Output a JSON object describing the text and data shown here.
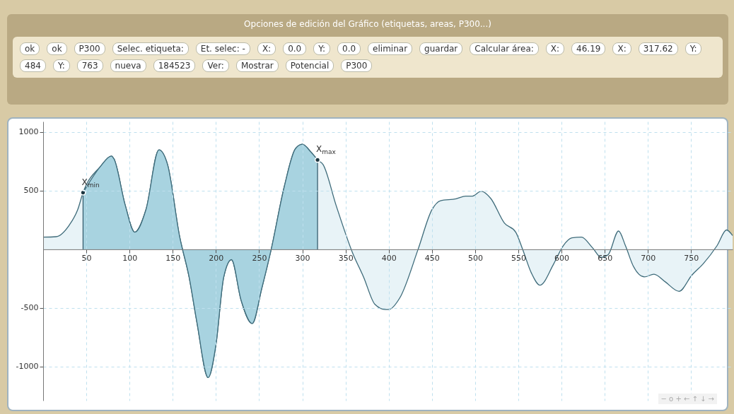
{
  "chart_data": [
    {
      "type": "other",
      "title": "Opciones de edición del Gráfico (etiquetas, areas, P300...)",
      "annotations": [
        "ok",
        "ok",
        "P300",
        "Selec. etiqueta:",
        "Et. selec: -",
        "X:",
        "0.0",
        "Y:",
        "0.0",
        "eliminar",
        "guardar",
        "Calcular área:",
        "X:",
        "46.19",
        "X:",
        "317.62",
        "Y:",
        "484",
        "Y:",
        "763",
        "nueva",
        "184523",
        "Ver:",
        "Mostrar",
        "Potencial",
        "P300"
      ]
    },
    {
      "type": "area",
      "xlim": [
        0,
        798
      ],
      "ylim": [
        -1290,
        1090
      ],
      "xticks": [
        50,
        100,
        150,
        200,
        250,
        300,
        350,
        400,
        450,
        500,
        550,
        600,
        650,
        700,
        750
      ],
      "yticks": [
        {
          "value": -1000,
          "label": "-1000"
        },
        {
          "value": -500,
          "label": "-500"
        },
        500,
        {
          "value": 1000,
          "label": "1000"
        }
      ],
      "grid": true,
      "series": [
        {
          "color": "#e8f3f7",
          "x": [
            0,
            15,
            30,
            40,
            46.19,
            66,
            79,
            82,
            95,
            106,
            119,
            134,
            144,
            158,
            169,
            178,
            191,
            200,
            209,
            218,
            229,
            242,
            253,
            264,
            279,
            292,
            300,
            310,
            317.62,
            324,
            339,
            358,
            371,
            384,
            396,
            400,
            413,
            434,
            450,
            460,
            478,
            489,
            497,
            507,
            518,
            534,
            547,
            555,
            565,
            575,
            591,
            602,
            612,
            623,
            636,
            646,
            654,
            666,
            674,
            683,
            696,
            707,
            720,
            736,
            751,
            764,
            780,
            791,
            798
          ],
          "values": [
            104,
            108,
            204,
            338,
            484,
            704,
            796,
            771,
            377,
            146,
            338,
            848,
            723,
            108,
            -238,
            -623,
            -1094,
            -815,
            -238,
            -88,
            -431,
            -633,
            -335,
            0,
            531,
            858,
            896,
            829,
            763,
            723,
            377,
            -27,
            -238,
            -469,
            -513,
            -513,
            -412,
            0,
            338,
            415,
            431,
            454,
            454,
            496,
            435,
            223,
            146,
            0,
            -200,
            -306,
            -123,
            31,
            98,
            104,
            12,
            -69,
            -46,
            156,
            31,
            -142,
            -235,
            -212,
            -277,
            -358,
            -219,
            -123,
            31,
            165,
            117
          ]
        },
        {
          "color": "#a8d3e0",
          "x": [
            46.19,
            66,
            79,
            82,
            95,
            106,
            119,
            134,
            144,
            158,
            169,
            178,
            191,
            200,
            209,
            218,
            229,
            242,
            253,
            264,
            279,
            292,
            300,
            310,
            317.62
          ],
          "values": [
            484,
            704,
            796,
            771,
            377,
            146,
            338,
            848,
            723,
            108,
            -238,
            -623,
            -1094,
            -815,
            -238,
            -88,
            -431,
            -633,
            -335,
            0,
            531,
            858,
            896,
            829,
            763
          ]
        }
      ],
      "annotations": [
        {
          "text": "X$_{min}$",
          "x": 46.19,
          "y": 484
        },
        {
          "text": "X$_{max}$",
          "x": 317.62,
          "y": 763
        },
        "− o + ← ↑ ↓ →"
      ]
    }
  ]
}
